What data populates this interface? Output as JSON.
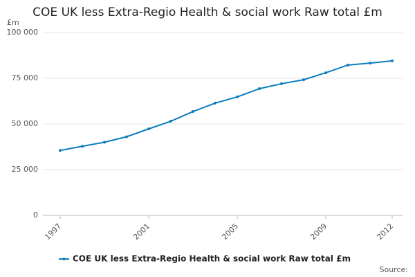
{
  "chart_data": {
    "type": "line",
    "title": "COE UK less Extra-Regio Health & social work Raw total £m",
    "y_label": "£m",
    "source": "Source:",
    "x": [
      1997,
      1998,
      1999,
      2000,
      2001,
      2002,
      2003,
      2004,
      2005,
      2006,
      2007,
      2008,
      2009,
      2010,
      2011,
      2012
    ],
    "series": [
      {
        "name": "COE UK less Extra-Regio Health & social work Raw total £m",
        "color": "#0a7dbf",
        "values": [
          35500,
          37800,
          40000,
          43000,
          47300,
          51500,
          56800,
          61400,
          64800,
          69300,
          72000,
          74200,
          78000,
          82200,
          83300,
          84500
        ]
      }
    ],
    "xlim": [
      1997,
      2012
    ],
    "xticks": [
      1997,
      2001,
      2005,
      2009,
      2012
    ],
    "ylim": [
      0,
      100000
    ],
    "yticks": [
      0,
      {
        "value": 25000,
        "label": "25 000"
      },
      {
        "value": 50000,
        "label": "50 000"
      },
      {
        "value": 75000,
        "label": "75 000"
      },
      {
        "value": 100000,
        "label": "100 000"
      }
    ],
    "grid": true
  }
}
